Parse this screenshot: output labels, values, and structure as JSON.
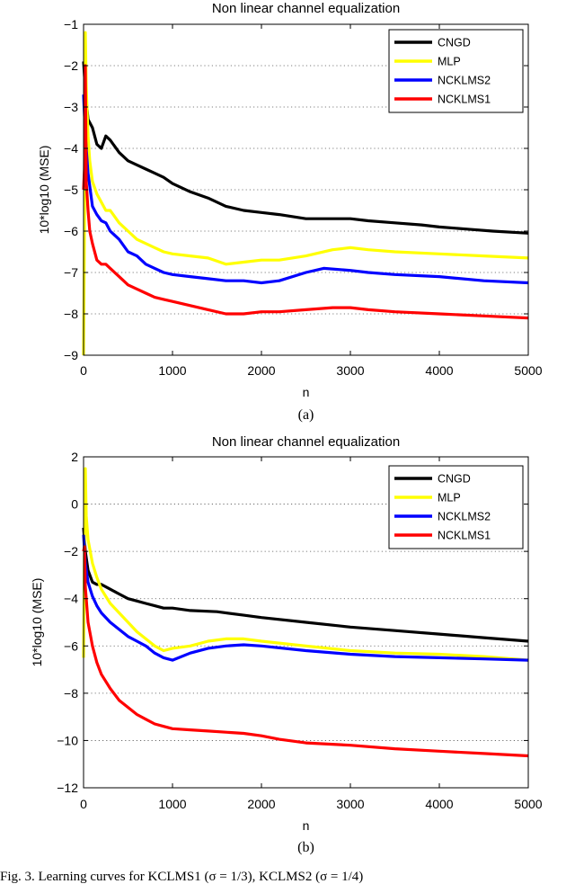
{
  "caption_fragment": "Fig. 3.  Learning curves for KCLMS1 (σ = 1/3), KCLMS2 (σ = 1/4)",
  "chart_data": [
    {
      "type": "line",
      "panel": "(a)",
      "title": "Non linear channel equalization",
      "xlabel": "n",
      "ylabel": "10*log10 (MSE)",
      "xlim": [
        0,
        5000
      ],
      "ylim": [
        -9,
        -1
      ],
      "xticks": [
        0,
        1000,
        2000,
        3000,
        4000,
        5000
      ],
      "yticks": [
        -9,
        -8,
        -7,
        -6,
        -5,
        -4,
        -3,
        -2,
        -1
      ],
      "grid": "horizontal dotted",
      "legend_position": "top-right",
      "series": [
        {
          "name": "CNGD",
          "color": "#000000",
          "x": [
            0,
            20,
            50,
            100,
            150,
            200,
            250,
            300,
            400,
            500,
            600,
            700,
            800,
            900,
            1000,
            1200,
            1400,
            1600,
            1800,
            2000,
            2200,
            2500,
            2800,
            3000,
            3200,
            3500,
            3800,
            4000,
            4300,
            4600,
            5000
          ],
          "y": [
            -1.9,
            -2.6,
            -3.3,
            -3.5,
            -3.9,
            -4.0,
            -3.7,
            -3.8,
            -4.1,
            -4.3,
            -4.4,
            -4.5,
            -4.6,
            -4.7,
            -4.85,
            -5.05,
            -5.2,
            -5.4,
            -5.5,
            -5.55,
            -5.6,
            -5.7,
            -5.7,
            -5.7,
            -5.75,
            -5.8,
            -5.85,
            -5.9,
            -5.95,
            -6.0,
            -6.05
          ]
        },
        {
          "name": "MLP",
          "color": "#ffff00",
          "x": [
            0,
            10,
            20,
            30,
            50,
            70,
            100,
            150,
            200,
            250,
            300,
            400,
            500,
            600,
            700,
            800,
            900,
            1000,
            1200,
            1400,
            1600,
            1800,
            2000,
            2200,
            2500,
            2800,
            3000,
            3200,
            3500,
            4000,
            4500,
            5000
          ],
          "y": [
            -9.0,
            -6.0,
            -1.2,
            -2.5,
            -3.7,
            -4.3,
            -4.8,
            -5.1,
            -5.3,
            -5.5,
            -5.5,
            -5.8,
            -6.0,
            -6.2,
            -6.3,
            -6.4,
            -6.5,
            -6.55,
            -6.6,
            -6.65,
            -6.8,
            -6.75,
            -6.7,
            -6.7,
            -6.6,
            -6.45,
            -6.4,
            -6.45,
            -6.5,
            -6.55,
            -6.6,
            -6.65
          ]
        },
        {
          "name": "NCKLMS2",
          "color": "#0000ff",
          "x": [
            0,
            20,
            50,
            100,
            150,
            200,
            250,
            300,
            400,
            500,
            600,
            700,
            800,
            900,
            1000,
            1200,
            1400,
            1600,
            1800,
            2000,
            2200,
            2500,
            2700,
            3000,
            3200,
            3500,
            4000,
            4500,
            5000
          ],
          "y": [
            -2.7,
            -3.7,
            -4.6,
            -5.4,
            -5.6,
            -5.75,
            -5.8,
            -6.0,
            -6.2,
            -6.5,
            -6.6,
            -6.8,
            -6.9,
            -7.0,
            -7.05,
            -7.1,
            -7.15,
            -7.2,
            -7.2,
            -7.25,
            -7.2,
            -7.0,
            -6.9,
            -6.95,
            -7.0,
            -7.05,
            -7.1,
            -7.2,
            -7.25
          ]
        },
        {
          "name": "NCKLMS1",
          "color": "#ff0000",
          "x": [
            0,
            10,
            20,
            30,
            50,
            70,
            100,
            150,
            200,
            250,
            300,
            400,
            500,
            600,
            700,
            800,
            900,
            1000,
            1200,
            1400,
            1600,
            1800,
            2000,
            2200,
            2500,
            2800,
            3000,
            3200,
            3500,
            4000,
            4500,
            5000
          ],
          "y": [
            -5.0,
            -4.5,
            -2.0,
            -4.8,
            -5.5,
            -6.0,
            -6.3,
            -6.7,
            -6.8,
            -6.8,
            -6.9,
            -7.1,
            -7.3,
            -7.4,
            -7.5,
            -7.6,
            -7.65,
            -7.7,
            -7.8,
            -7.9,
            -8.0,
            -8.0,
            -7.95,
            -7.95,
            -7.9,
            -7.85,
            -7.85,
            -7.9,
            -7.95,
            -8.0,
            -8.05,
            -8.1
          ]
        }
      ]
    },
    {
      "type": "line",
      "panel": "(b)",
      "title": "Non linear channel equalization",
      "xlabel": "n",
      "ylabel": "10*log10 (MSE)",
      "xlim": [
        0,
        5000
      ],
      "ylim": [
        -12,
        2
      ],
      "xticks": [
        0,
        1000,
        2000,
        3000,
        4000,
        5000
      ],
      "yticks": [
        -12,
        -10,
        -8,
        -6,
        -4,
        -2,
        0,
        2
      ],
      "grid": "horizontal dotted",
      "legend_position": "top-right",
      "series": [
        {
          "name": "CNGD",
          "color": "#000000",
          "x": [
            0,
            20,
            50,
            100,
            150,
            200,
            300,
            400,
            500,
            600,
            700,
            800,
            900,
            1000,
            1200,
            1500,
            1800,
            2000,
            2500,
            3000,
            3500,
            4000,
            4500,
            5000
          ],
          "y": [
            -1.0,
            -2.0,
            -2.8,
            -3.3,
            -3.4,
            -3.4,
            -3.6,
            -3.8,
            -4.0,
            -4.1,
            -4.2,
            -4.3,
            -4.4,
            -4.4,
            -4.5,
            -4.55,
            -4.7,
            -4.8,
            -5.0,
            -5.2,
            -5.35,
            -5.5,
            -5.65,
            -5.8
          ]
        },
        {
          "name": "MLP",
          "color": "#ffff00",
          "x": [
            0,
            10,
            20,
            30,
            50,
            100,
            150,
            200,
            300,
            400,
            500,
            600,
            700,
            800,
            900,
            1000,
            1200,
            1400,
            1600,
            1800,
            2000,
            2500,
            3000,
            3500,
            4000,
            4500,
            5000
          ],
          "y": [
            -6.5,
            -2.0,
            1.5,
            -0.5,
            -1.5,
            -2.5,
            -3.1,
            -3.6,
            -4.2,
            -4.6,
            -5.0,
            -5.4,
            -5.7,
            -6.0,
            -6.2,
            -6.1,
            -6.0,
            -5.8,
            -5.7,
            -5.7,
            -5.8,
            -6.0,
            -6.2,
            -6.3,
            -6.35,
            -6.45,
            -6.6
          ]
        },
        {
          "name": "NCKLMS2",
          "color": "#0000ff",
          "x": [
            0,
            20,
            50,
            100,
            150,
            200,
            300,
            400,
            500,
            600,
            700,
            800,
            900,
            1000,
            1200,
            1400,
            1600,
            1800,
            2000,
            2500,
            3000,
            3500,
            4000,
            4500,
            5000
          ],
          "y": [
            -1.3,
            -2.5,
            -3.3,
            -3.9,
            -4.3,
            -4.6,
            -5.0,
            -5.3,
            -5.6,
            -5.8,
            -6.0,
            -6.3,
            -6.5,
            -6.6,
            -6.3,
            -6.1,
            -6.0,
            -5.95,
            -6.0,
            -6.2,
            -6.35,
            -6.45,
            -6.5,
            -6.55,
            -6.6
          ]
        },
        {
          "name": "NCKLMS1",
          "color": "#ff0000",
          "x": [
            0,
            10,
            20,
            50,
            100,
            150,
            200,
            300,
            400,
            500,
            600,
            700,
            800,
            900,
            1000,
            1200,
            1400,
            1600,
            1800,
            2000,
            2200,
            2500,
            3000,
            3500,
            4000,
            4500,
            5000
          ],
          "y": [
            -2.0,
            -1.8,
            -3.5,
            -5.0,
            -6.0,
            -6.7,
            -7.2,
            -7.8,
            -8.3,
            -8.6,
            -8.9,
            -9.1,
            -9.3,
            -9.4,
            -9.5,
            -9.55,
            -9.6,
            -9.65,
            -9.7,
            -9.8,
            -9.95,
            -10.1,
            -10.2,
            -10.35,
            -10.45,
            -10.55,
            -10.65
          ]
        }
      ]
    }
  ]
}
